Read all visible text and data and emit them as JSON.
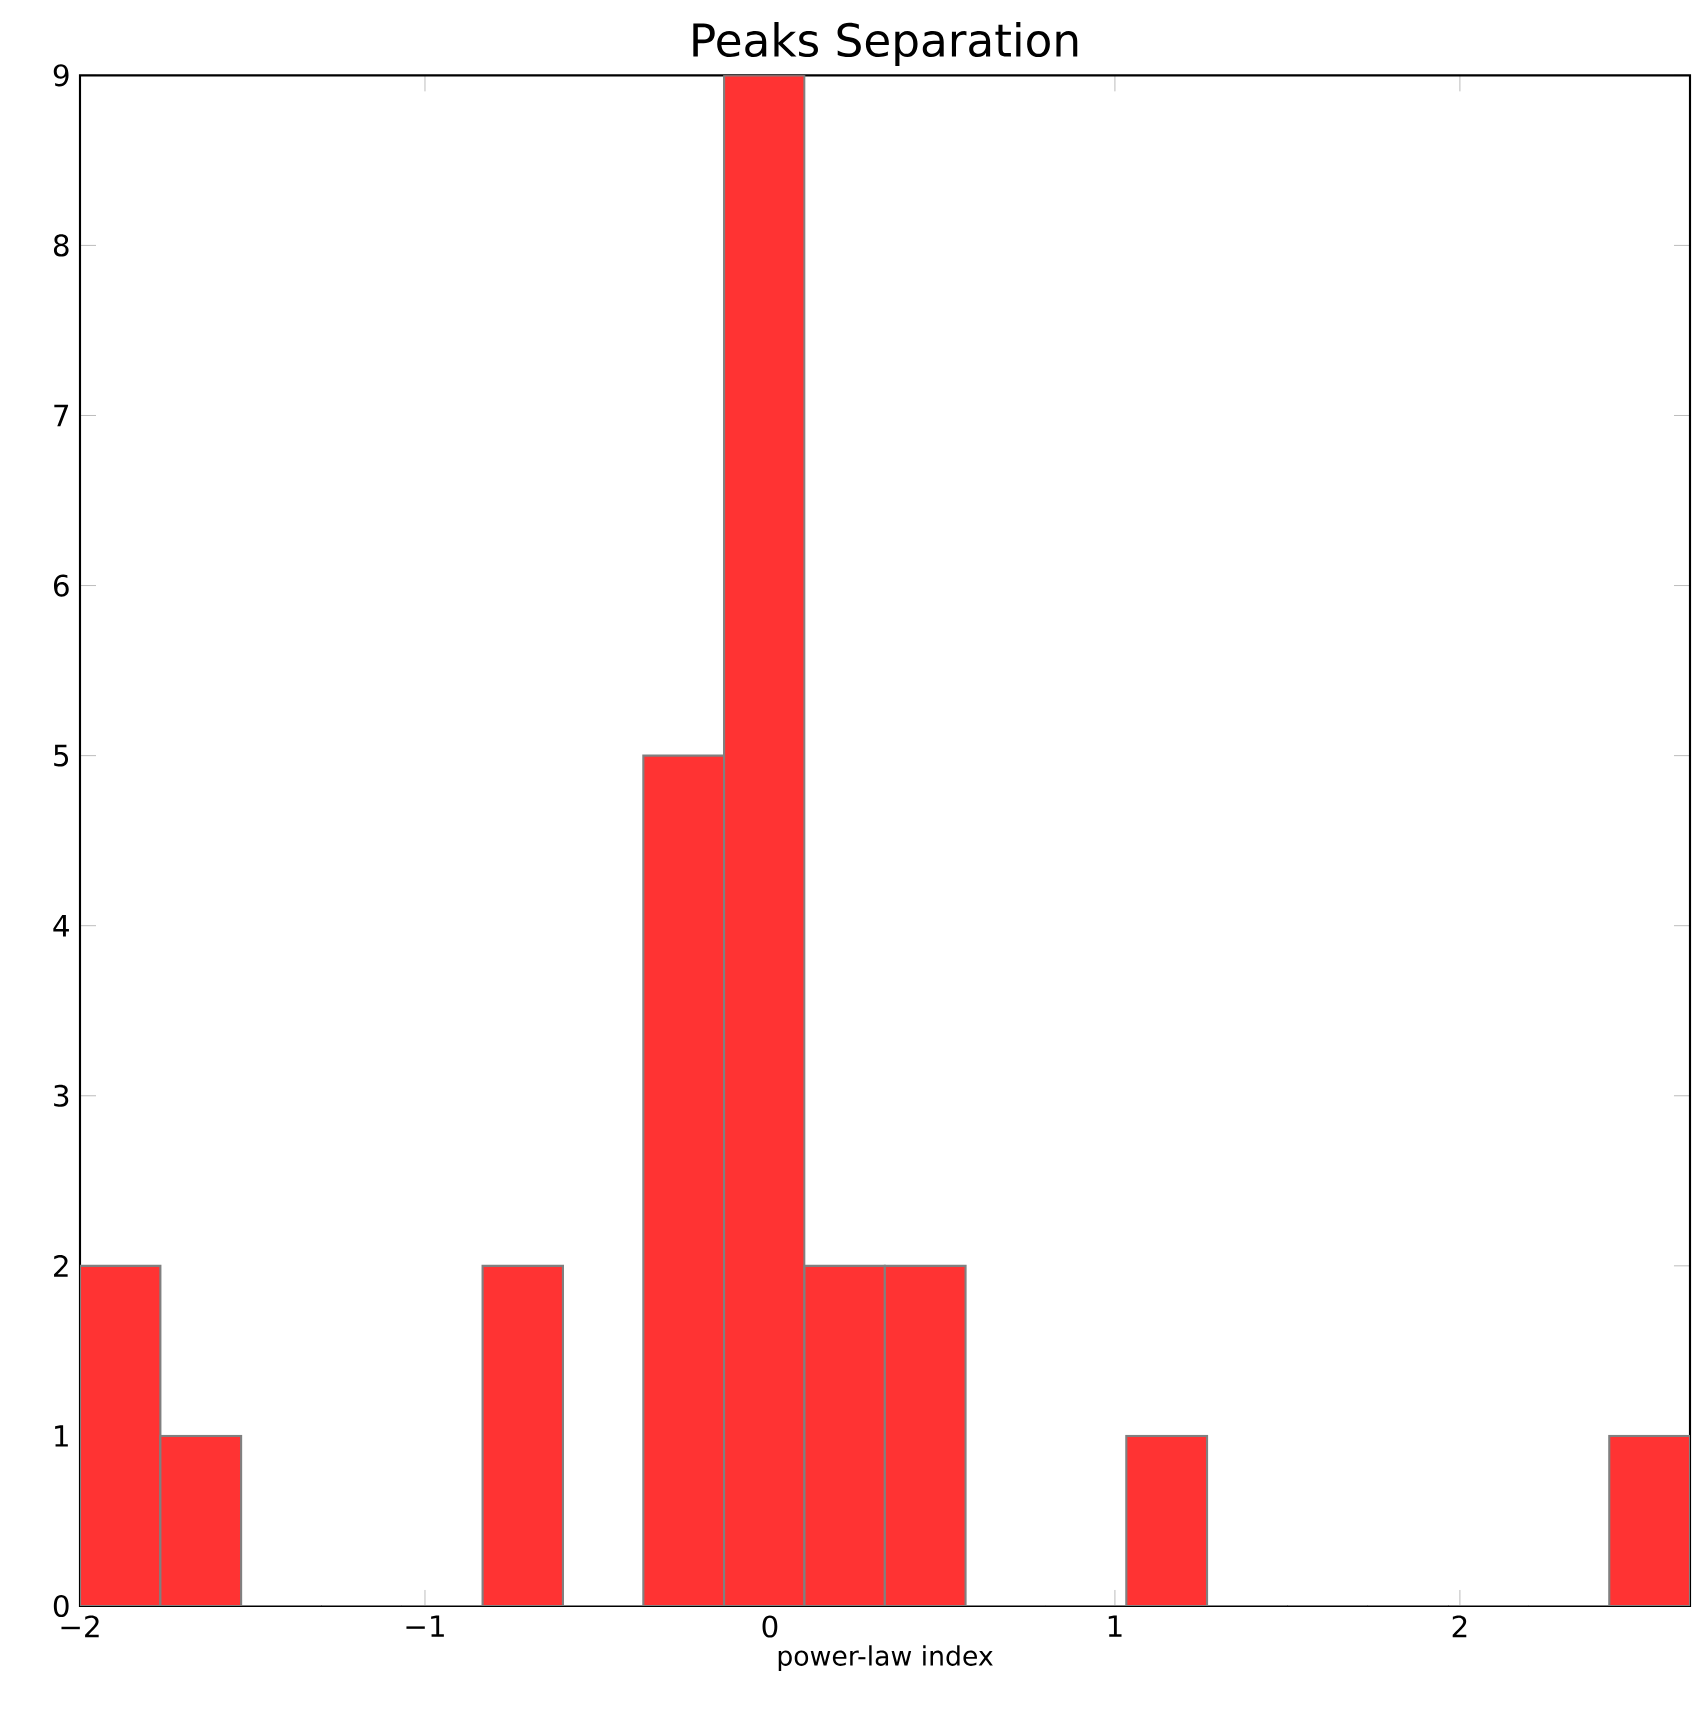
{
  "chart_data": {
    "type": "histogram",
    "title": "Peaks Separation",
    "xlabel": "power-law index",
    "bins": [
      -2,
      -1.767,
      -1.533,
      -1.3,
      -1.067,
      -0.833,
      -0.6,
      -0.367,
      -0.133,
      0.1,
      0.333,
      0.567,
      0.8,
      1.033,
      1.267,
      1.5,
      1.733,
      1.967,
      2.2,
      2.433,
      2.667
    ],
    "values": [
      2,
      1,
      0,
      0,
      0,
      2,
      0,
      5,
      9,
      2,
      2,
      0,
      0,
      1,
      0,
      0,
      0,
      0,
      0,
      1
    ],
    "color": "#ff3333",
    "xlim": [
      -2,
      2.667
    ],
    "ylim": [
      0,
      9
    ],
    "xticks": [
      {
        "value": -2,
        "label": "−2"
      },
      {
        "value": -1,
        "label": "−1"
      },
      0,
      1,
      2
    ],
    "yticks": [
      0,
      1,
      2,
      3,
      4,
      5,
      6,
      7,
      8,
      9
    ],
    "grid": false
  }
}
